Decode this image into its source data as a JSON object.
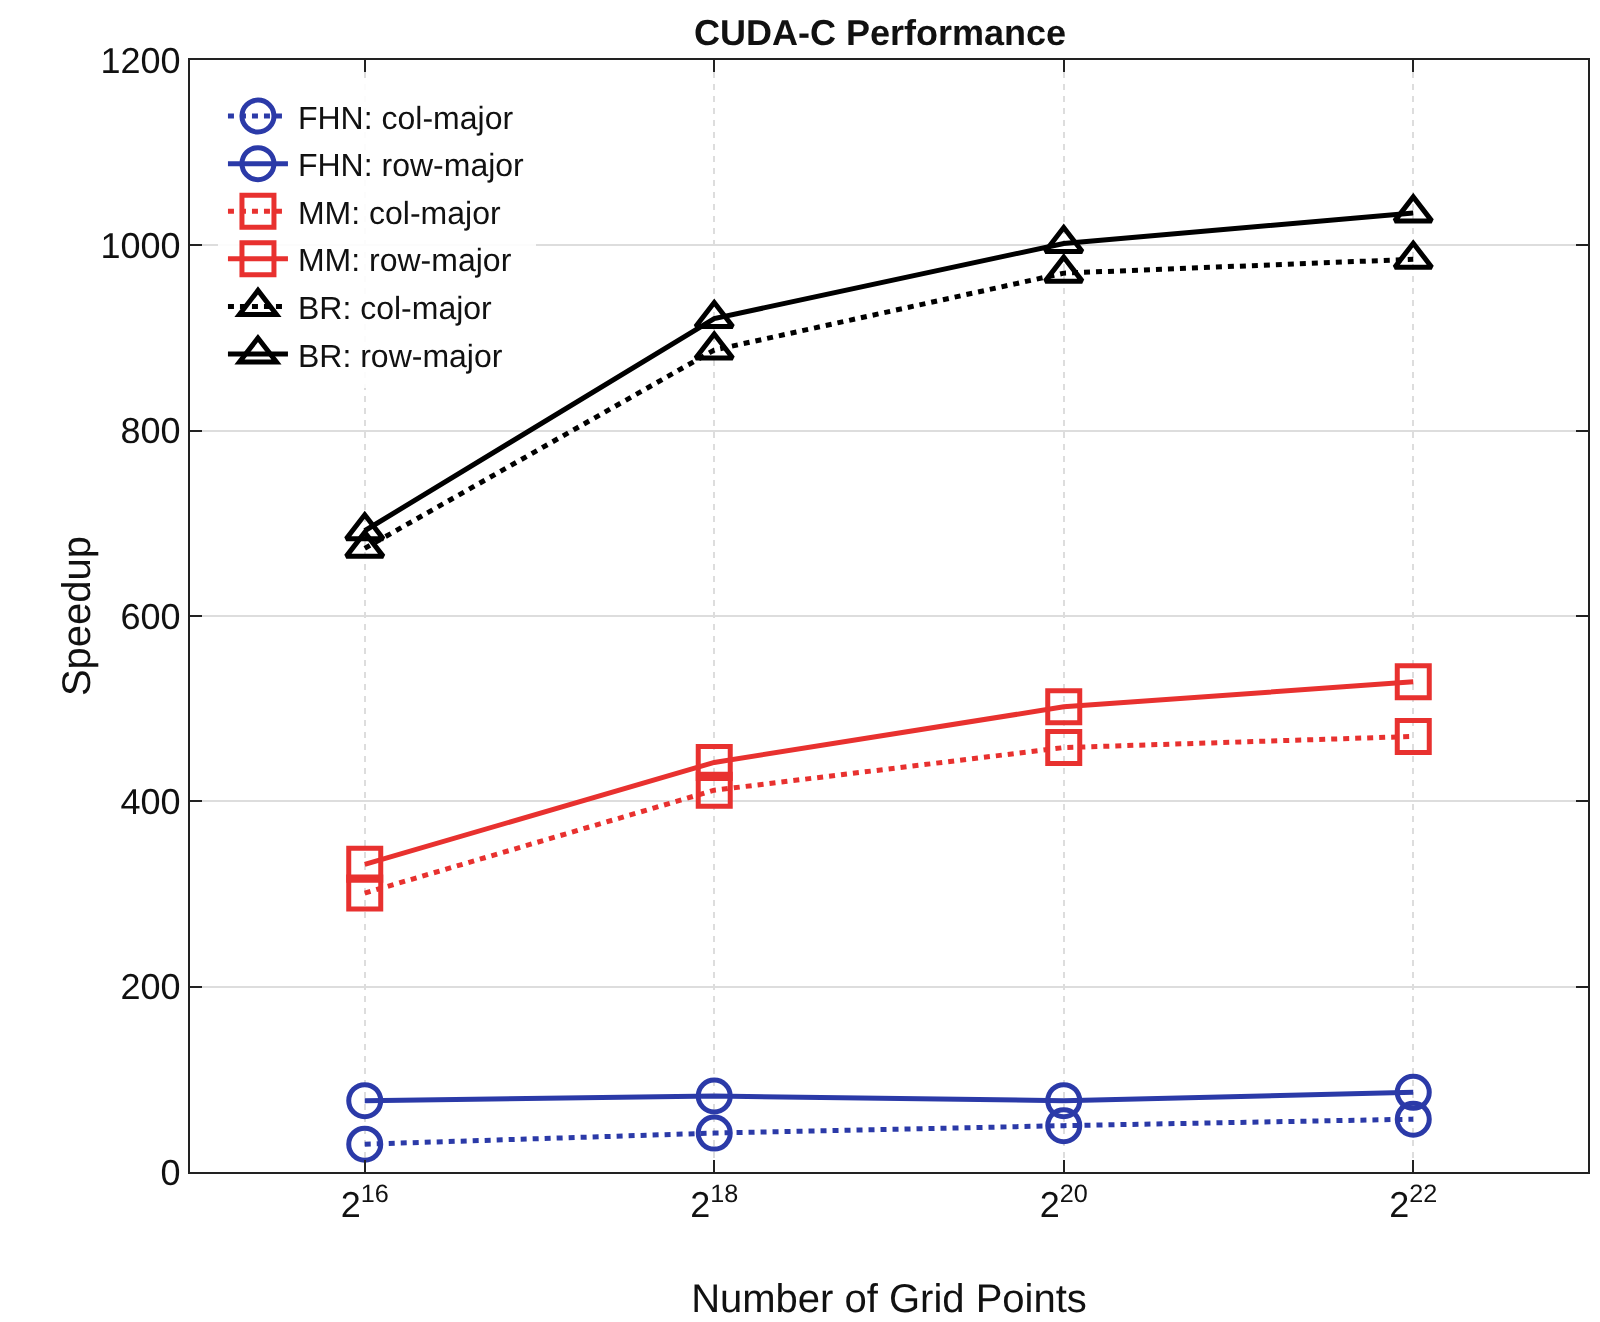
{
  "chart_data": {
    "type": "line",
    "title": "CUDA-C Performance",
    "xlabel": "Number of Grid Points",
    "ylabel": "Speedup",
    "x": [
      65536,
      262144,
      1048576,
      4194304
    ],
    "log": "x",
    "xlim": [
      32768,
      8388608
    ],
    "xticks": [
      {
        "value": 65536,
        "label": "2$^{16}$"
      },
      {
        "value": 262144,
        "label": "2$^{18}$"
      },
      {
        "value": 1048576,
        "label": "2$^{20}$"
      },
      {
        "value": 4194304,
        "label": "2$^{22}$"
      }
    ],
    "ylim": [
      0,
      1200
    ],
    "yticks": [
      0,
      200,
      400,
      600,
      800,
      1000,
      1200
    ],
    "grid": true,
    "legend": "top left",
    "series": [
      {
        "name": "FHN: col-major",
        "color": "#2b3aa8",
        "marker": "circle",
        "line_style": "dotted",
        "values": [
          30,
          42,
          50,
          57
        ]
      },
      {
        "name": "FHN: row-major",
        "color": "#2b3aa8",
        "marker": "circle",
        "line_style": "solid",
        "values": [
          77,
          82,
          77,
          86
        ]
      },
      {
        "name": "MM: col-major",
        "color": "#e8312f",
        "marker": "square",
        "line_style": "dotted",
        "values": [
          301,
          412,
          458,
          470
        ]
      },
      {
        "name": "MM: row-major",
        "color": "#e8312f",
        "marker": "square",
        "line_style": "solid",
        "values": [
          332,
          442,
          502,
          529
        ]
      },
      {
        "name": "BR: col-major",
        "color": "#000000",
        "marker": "triangle",
        "line_style": "dotted",
        "values": [
          673,
          887,
          970,
          985
        ]
      },
      {
        "name": "BR: row-major",
        "color": "#000000",
        "marker": "triangle",
        "line_style": "solid",
        "values": [
          692,
          921,
          1002,
          1035
        ]
      }
    ]
  }
}
